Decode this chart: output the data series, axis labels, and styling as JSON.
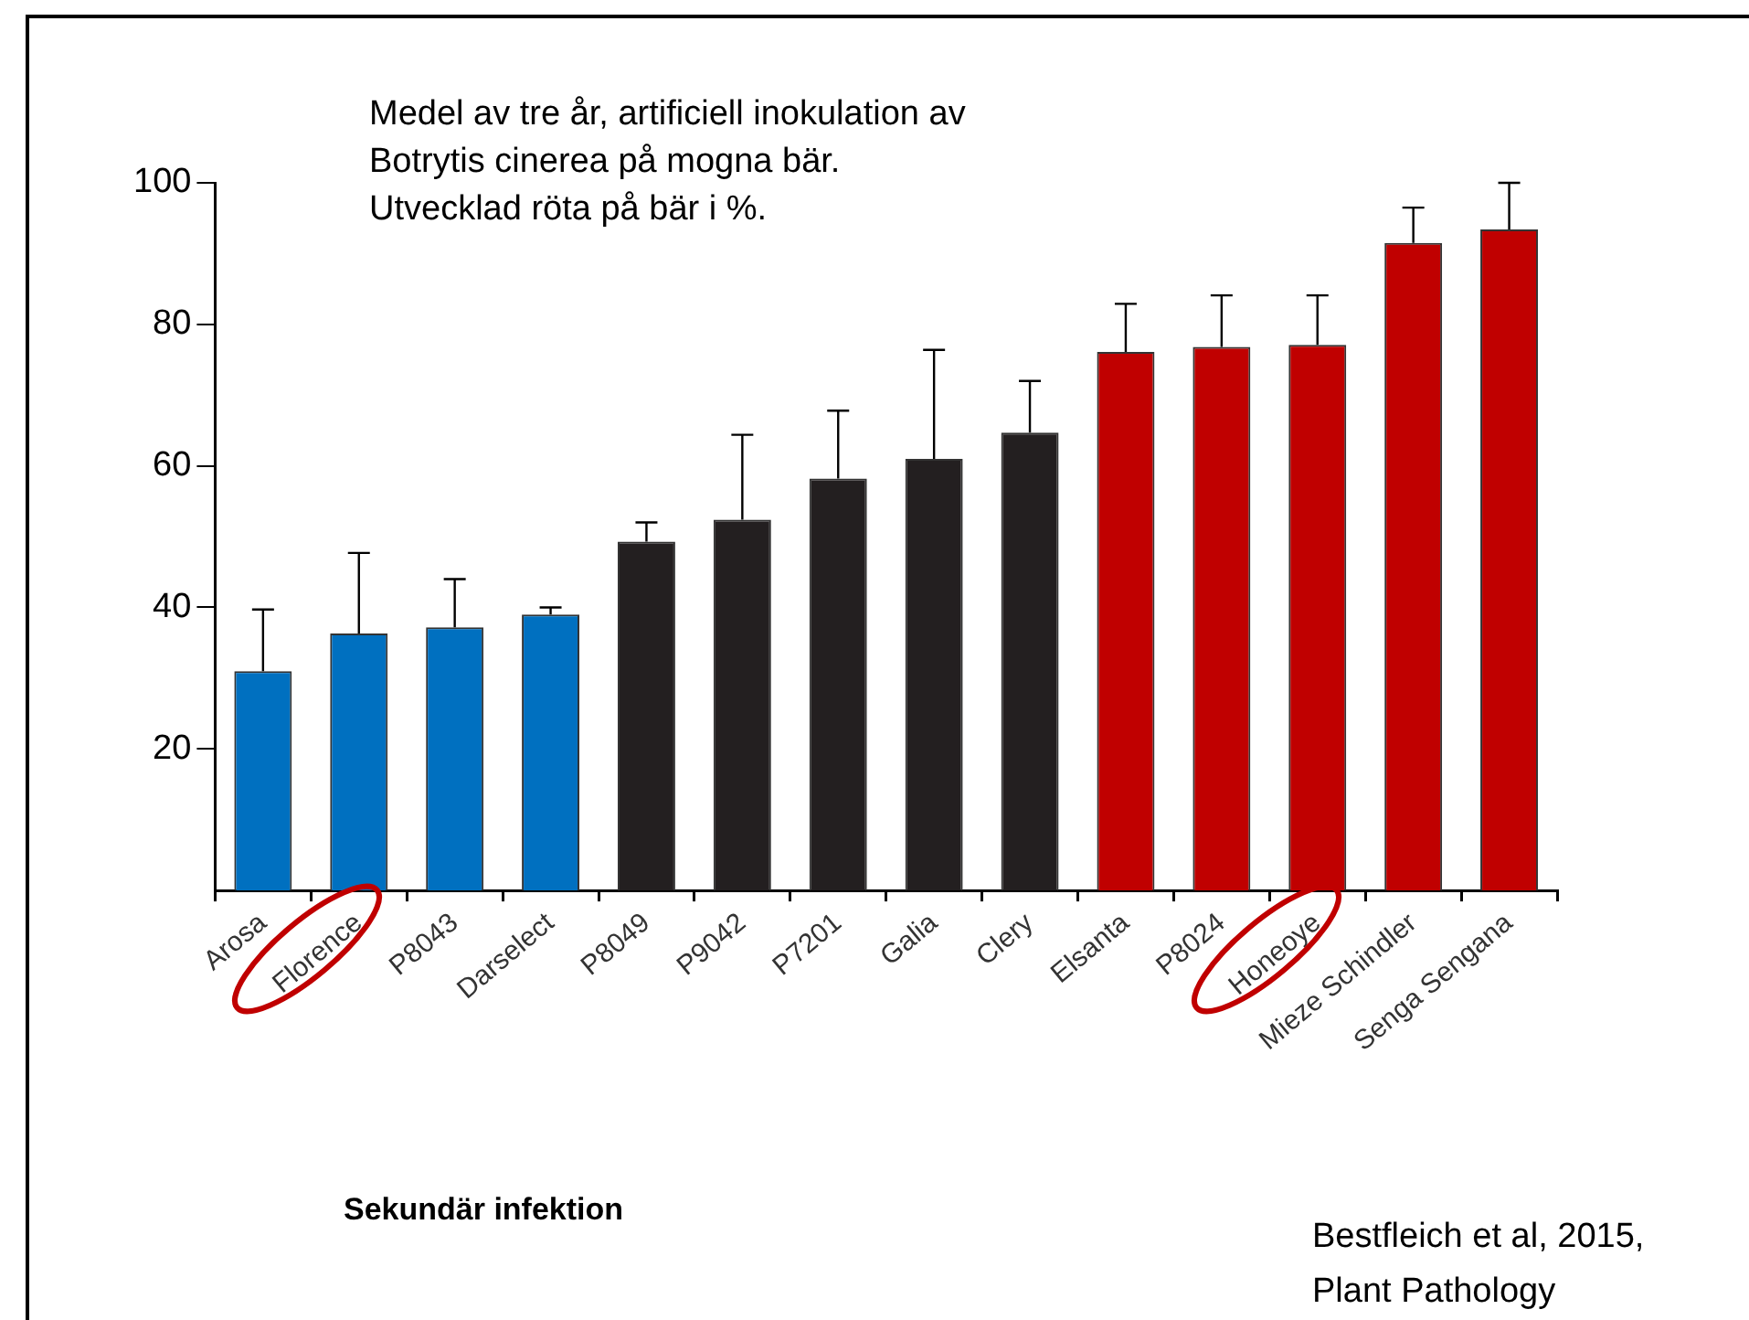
{
  "chart_data": {
    "type": "bar",
    "title": "Medel av tre år, artificiell  inokulation av\nBotrytis cinerea på mogna bär.\nUtvecklad röta på bär i %.",
    "categories": [
      "Arosa",
      "Florence",
      "P8043",
      "Darselect",
      "P8049",
      "P9042",
      "P7201",
      "Galia",
      "Clery",
      "Elsanta",
      "P8024",
      "Honeoye",
      "Mieze Schindler",
      "Senga Sengana"
    ],
    "values": [
      31,
      36.3,
      37.2,
      39,
      49.3,
      52.4,
      58.2,
      61,
      64.7,
      76.1,
      76.8,
      77.1,
      91.5,
      93.4
    ],
    "colors": [
      "#0070c0",
      "#0070c0",
      "#0070c0",
      "#0070c0",
      "#231f20",
      "#231f20",
      "#231f20",
      "#231f20",
      "#231f20",
      "#c00000",
      "#c00000",
      "#c00000",
      "#c00000",
      "#c00000"
    ],
    "errors": [
      [
        31,
        39.7
      ],
      [
        36.3,
        47.7
      ],
      [
        37.2,
        44
      ],
      [
        39,
        40
      ],
      [
        49.3,
        52
      ],
      [
        52.4,
        64.4
      ],
      [
        58.2,
        67.8
      ],
      [
        61,
        76.4
      ],
      [
        64.7,
        72
      ],
      [
        76.1,
        82.9
      ],
      [
        76.8,
        84.1
      ],
      [
        77.1,
        84.1
      ],
      [
        91.5,
        96.5
      ],
      [
        93.4,
        100
      ]
    ],
    "ylim": [
      0,
      100
    ],
    "yticks": [
      20,
      40,
      60,
      80,
      100
    ],
    "grid": false,
    "legend": false,
    "annotations": [
      "Sekundär infektion",
      "Bestfleich et al, 2015,\nPlant Pathology"
    ]
  }
}
